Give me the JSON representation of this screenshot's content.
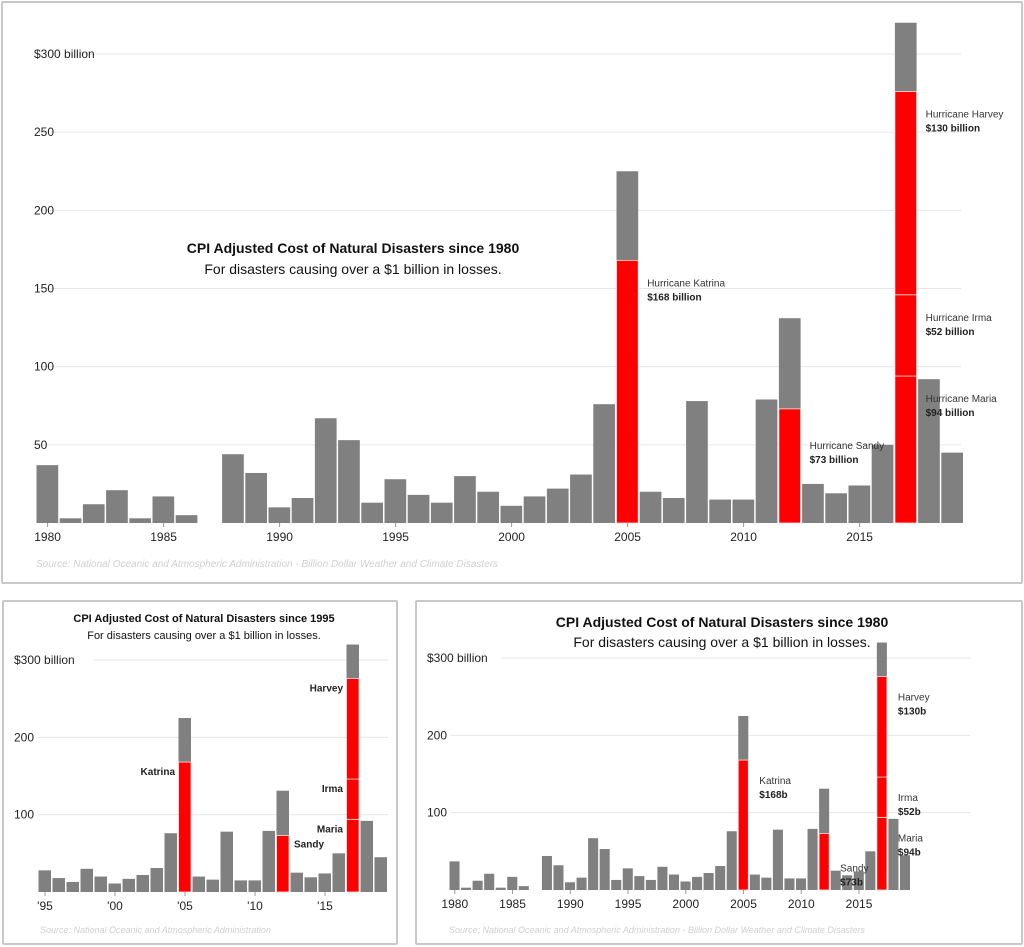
{
  "colors": {
    "bar": "#808080",
    "highlight": "#ff0000",
    "grid": "#e6e6e6",
    "text": "#222222",
    "source": "#cfcfcf"
  },
  "chart_data": [
    {
      "id": "top",
      "type": "bar",
      "title": "CPI Adjusted Cost of Natural Disasters since 1980",
      "subtitle": "For disasters causing over a $1 billion in losses.",
      "source": "Source: National Oceanic and Atmospheric Administration - Billion Dollar Weather and Climate Disasters",
      "xlabel": "",
      "ylabel": "",
      "ylim": [
        0,
        300
      ],
      "yticks": [
        50,
        100,
        150,
        200,
        250,
        300
      ],
      "ytick_labels": [
        "50",
        "100",
        "150",
        "200",
        "250",
        "$300 billion"
      ],
      "xticks": [
        1980,
        1985,
        1990,
        1995,
        2000,
        2005,
        2010,
        2015
      ],
      "xtick_labels": [
        "1980",
        "1985",
        "1990",
        "1995",
        "2000",
        "2005",
        "2010",
        "2015"
      ],
      "grid": true,
      "annotations": [
        {
          "year": 2005,
          "name": "Hurricane Katrina",
          "value_label": "$168 billion"
        },
        {
          "year": 2012,
          "name": "Hurricane Sandy",
          "value_label": "$73 billion"
        },
        {
          "year": 2017,
          "name": "Hurricane Harvey",
          "value_label": "$130 billion"
        },
        {
          "year": 2017,
          "name": "Hurricane Irma",
          "value_label": "$52 billion"
        },
        {
          "year": 2017,
          "name": "Hurricane Maria",
          "value_label": "$94 billion"
        }
      ]
    },
    {
      "id": "bottom-left",
      "type": "bar",
      "title": "CPI Adjusted Cost of Natural Disasters since 1995",
      "subtitle": "For disasters causing over a $1 billion in losses.",
      "source": "Source: National Oceanic and Atmospheric Administration",
      "ylim": [
        0,
        300
      ],
      "yticks": [
        100,
        200,
        300
      ],
      "ytick_labels": [
        "100",
        "200",
        "$300 billion"
      ],
      "xticks": [
        1995,
        2000,
        2005,
        2010,
        2015
      ],
      "xtick_labels": [
        "'95",
        "'00",
        "'05",
        "'10",
        "'15"
      ],
      "grid": true,
      "annotations": [
        {
          "year": 2005,
          "name": "Katrina"
        },
        {
          "year": 2012,
          "name": "Sandy"
        },
        {
          "year": 2017,
          "name": "Harvey"
        },
        {
          "year": 2017,
          "name": "Irma"
        },
        {
          "year": 2017,
          "name": "Maria"
        }
      ]
    },
    {
      "id": "bottom-right",
      "type": "bar",
      "title": "CPI Adjusted Cost of Natural Disasters since 1980",
      "subtitle": "For disasters causing over a $1 billion in losses.",
      "source": "Source: National Oceanic and Atmospheric Administration - Billion Dollar Weather and Climate Disasters",
      "ylim": [
        0,
        300
      ],
      "yticks": [
        100,
        200,
        300
      ],
      "ytick_labels": [
        "100",
        "200",
        "$300 billion"
      ],
      "xticks": [
        1980,
        1985,
        1990,
        1995,
        2000,
        2005,
        2010,
        2015
      ],
      "xtick_labels": [
        "1980",
        "1985",
        "1990",
        "1995",
        "2000",
        "2005",
        "2010",
        "2015"
      ],
      "grid": true,
      "annotations": [
        {
          "year": 2005,
          "name": "Katrina",
          "value_label": "$168b"
        },
        {
          "year": 2012,
          "name": "Sandy",
          "value_label": "$73b"
        },
        {
          "year": 2017,
          "name": "Harvey",
          "value_label": "$130b"
        },
        {
          "year": 2017,
          "name": "Irma",
          "value_label": "$52b"
        },
        {
          "year": 2017,
          "name": "Maria",
          "value_label": "$94b"
        }
      ]
    }
  ],
  "series": {
    "years": [
      1980,
      1981,
      1982,
      1983,
      1984,
      1985,
      1986,
      1987,
      1988,
      1989,
      1990,
      1991,
      1992,
      1993,
      1994,
      1995,
      1996,
      1997,
      1998,
      1999,
      2000,
      2001,
      2002,
      2003,
      2004,
      2005,
      2006,
      2007,
      2008,
      2009,
      2010,
      2011,
      2012,
      2013,
      2014,
      2015,
      2016,
      2017,
      2018,
      2019
    ],
    "total": [
      37,
      3,
      12,
      21,
      3,
      17,
      5,
      0,
      44,
      32,
      10,
      16,
      67,
      53,
      13,
      28,
      18,
      13,
      30,
      20,
      11,
      17,
      22,
      31,
      76,
      225,
      20,
      16,
      78,
      15,
      15,
      79,
      131,
      25,
      19,
      24,
      50,
      320,
      92,
      45
    ],
    "highlight_segments": [
      {
        "year": 2005,
        "name": "Katrina",
        "value": 168,
        "base": 0
      },
      {
        "year": 2012,
        "name": "Sandy",
        "value": 73,
        "base": 0
      },
      {
        "year": 2017,
        "name": "Maria",
        "value": 94,
        "base": 0
      },
      {
        "year": 2017,
        "name": "Irma",
        "value": 52,
        "base": 94
      },
      {
        "year": 2017,
        "name": "Harvey",
        "value": 130,
        "base": 146
      }
    ]
  }
}
